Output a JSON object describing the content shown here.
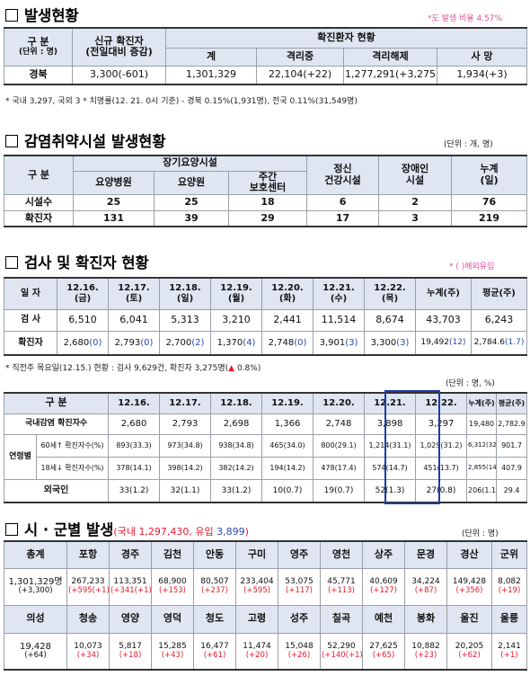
{
  "s1": {
    "title": "발생현황",
    "ratio_note": "*도 발생 비율 4.57%",
    "h_gubun": "구  분",
    "h_unit": "(단위 : 명)",
    "h_new1": "신규 확진자",
    "h_new2": "(전일대비 증감)",
    "h_status": "확진환자 현황",
    "h_total": "계",
    "h_iso": "격리중",
    "h_rel": "격리해제",
    "h_death": "사  망",
    "row_label": "경북",
    "new": "3,300",
    "new_d": "(-601)",
    "total": "1,301,329",
    "iso": "22,104",
    "iso_d": "(+22)",
    "rel": "1,277,291",
    "rel_d": "(+3,275)",
    "death": "1,934",
    "death_d": "(+3)",
    "footnote": "* 국내 3,297, 국외 3  * 치명률(12. 21. 0시 기준) - 경북 0.15%(1,931명), 전국 0.11%(31,549명)"
  },
  "s2": {
    "title": "감염취약시설 발생현황",
    "unit": "(단위 : 개, 명)",
    "h_gubun": "구  분",
    "h_long": "장기요양시설",
    "h_hosp": "요양병원",
    "h_home": "요양원",
    "h_day1": "주간",
    "h_day2": "보호센터",
    "h_mental1": "정신",
    "h_mental2": "건강시설",
    "h_dis1": "장애인",
    "h_dis2": "시설",
    "h_cum1": "누계",
    "h_cum2": "(일)",
    "rows": [
      {
        "label": "시설수",
        "v": [
          "25",
          "25",
          "18",
          "6",
          "2",
          "76"
        ]
      },
      {
        "label": "확진자",
        "v": [
          "131",
          "39",
          "29",
          "17",
          "3",
          "219"
        ]
      }
    ]
  },
  "s3": {
    "title": "검사 및 확진자 현황",
    "foreign_note": "* ( )해외유입",
    "h_date": "일  자",
    "dates": [
      {
        "d": "12.16.",
        "w": "(금)"
      },
      {
        "d": "12.17.",
        "w": "(토)"
      },
      {
        "d": "12.18.",
        "w": "(일)"
      },
      {
        "d": "12.19.",
        "w": "(월)"
      },
      {
        "d": "12.20.",
        "w": "(화)"
      },
      {
        "d": "12.21.",
        "w": "(수)"
      },
      {
        "d": "12.22.",
        "w": "(목)"
      }
    ],
    "h_cum": "누계(주)",
    "h_avg": "평균(주)",
    "test_label": "검  사",
    "tests": [
      "6,510",
      "6,041",
      "5,313",
      "3,210",
      "2,441",
      "11,514",
      "8,674",
      "43,703",
      "6,243"
    ],
    "conf_label": "확진자",
    "conf": [
      {
        "v": "2,680",
        "f": "(0)"
      },
      {
        "v": "2,793",
        "f": "(0)"
      },
      {
        "v": "2,700",
        "f": "(2)"
      },
      {
        "v": "1,370",
        "f": "(4)"
      },
      {
        "v": "2,748",
        "f": "(0)"
      },
      {
        "v": "3,901",
        "f": "(3)"
      },
      {
        "v": "3,300",
        "f": "(3)"
      },
      {
        "v": "19,492",
        "f": "(12)"
      },
      {
        "v": "2,784.6",
        "f": "(1.7)"
      }
    ],
    "week_note_a": "* 직전주 목요일(12.15.) 현황 : 검사 9,629건, 확진자 3,275명(",
    "week_note_arrow": "▲",
    "week_note_b": " 0.8%)"
  },
  "s4": {
    "unit": "(단위 : 명, %)",
    "h_gubun": "구  분",
    "dates": [
      "12.16.",
      "12.17.",
      "12.18.",
      "12.19.",
      "12.20.",
      "12.21.",
      "12.22."
    ],
    "h_cum": "누계(주)",
    "h_avg": "평균(주)",
    "domestic_label": "국내감염 확진자수",
    "domestic": [
      "2,680",
      "2,793",
      "2,698",
      "1,366",
      "2,748",
      "3,898",
      "3,297",
      "19,480",
      "2,782.9"
    ],
    "age_label": "연령별",
    "r60_a": "60세↑",
    "r60_b": "확진자수(%)",
    "r60": [
      "893(33.3)",
      "973(34.8)",
      "938(34.8)",
      "465(34.0)",
      "800(29.1)",
      "1,214(31.1)",
      "1,029(31.2)",
      "6,312(32.4)",
      "901.7"
    ],
    "r18_a": "18세↓",
    "r18_b": "확진자수(%)",
    "r18": [
      "378(14.1)",
      "398(14.2)",
      "382(14.2)",
      "194(14.2)",
      "478(17.4)",
      "574(14.7)",
      "451(13.7)",
      "2,855(14.7)",
      "407.9"
    ],
    "foreign_label": "외국인",
    "foreign": [
      "33(1.2)",
      "32(1.1)",
      "33(1.2)",
      "10(0.7)",
      "19(0.7)",
      "52(1.3)",
      "27(0.8)",
      "206(1.1)",
      "29.4"
    ]
  },
  "s5": {
    "title": "시 · 군별 발생",
    "sub_a": "(국내 ",
    "sub_dom": "1,297,430",
    "sub_b": ", 유입 ",
    "sub_imp": "3,899",
    "sub_c": ")",
    "unit": "(단위 : 명)",
    "row1_names": [
      "총계",
      "포항",
      "경주",
      "김천",
      "안동",
      "구미",
      "영주",
      "영천",
      "상주",
      "문경",
      "경산",
      "군위"
    ],
    "row1_vals": [
      "1,301,329명",
      "267,233",
      "113,351",
      "68,900",
      "80,507",
      "233,404",
      "53,075",
      "45,771",
      "40,609",
      "34,224",
      "149,428",
      "8,082"
    ],
    "row1_inc": [
      "(+3,300)",
      "(+595(+1)",
      "(+341(+1)",
      "(+153)",
      "(+237)",
      "(+595)",
      "(+117)",
      "(+113)",
      "(+127)",
      "(+87)",
      "(+356)",
      "(+19)"
    ],
    "row2_names": [
      "의성",
      "청송",
      "영양",
      "영덕",
      "청도",
      "고령",
      "성주",
      "칠곡",
      "예천",
      "봉화",
      "울진",
      "울릉"
    ],
    "row2_vals": [
      "19,428",
      "10,073",
      "5,817",
      "15,285",
      "16,477",
      "11,474",
      "15,048",
      "52,290",
      "27,625",
      "10,882",
      "20,205",
      "2,141"
    ],
    "row2_inc": [
      "(+64)",
      "(+34)",
      "(+18)",
      "(+43)",
      "(+61)",
      "(+20)",
      "(+26)",
      "(+140(+1)",
      "(+65)",
      "(+23)",
      "(+62)",
      "(+1)"
    ]
  },
  "colors": {
    "header_bg": "#dfe6f2",
    "accent_blue": "#2b47b0",
    "accent_red": "#e8182d",
    "pink": "#e0509a"
  }
}
